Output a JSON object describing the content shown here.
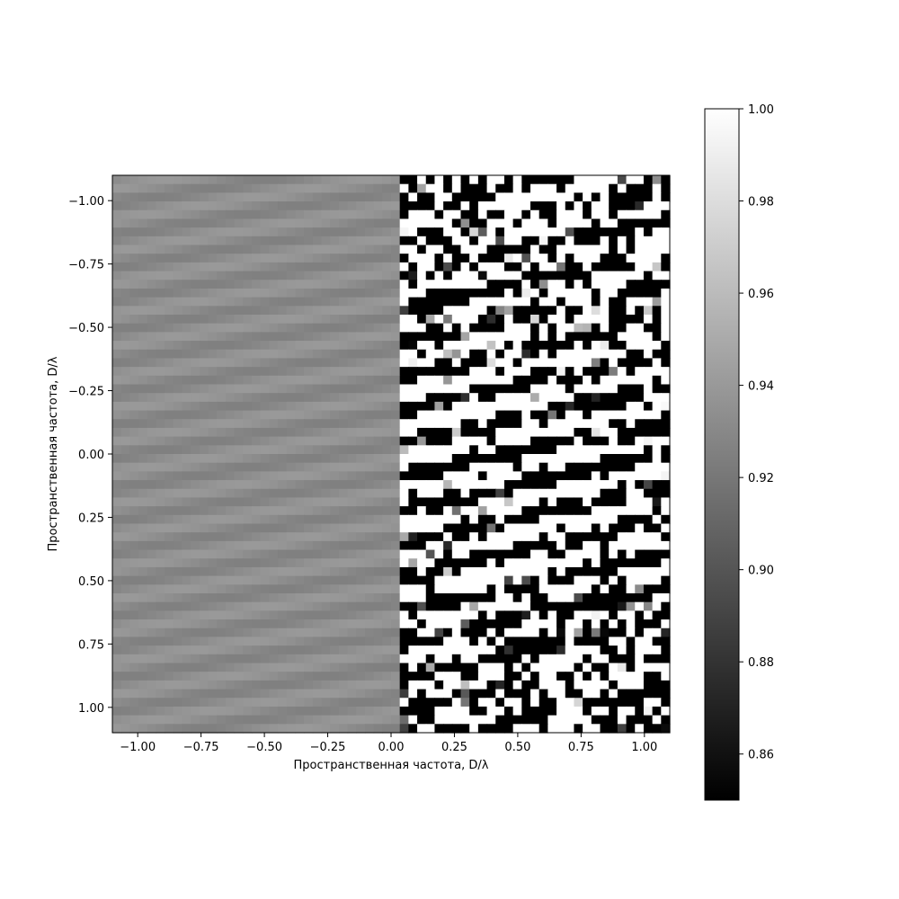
{
  "chart_data": {
    "type": "heatmap",
    "title": "",
    "xlabel": "Пространственная частота, D/λ",
    "ylabel": "Пространственная частота, D/λ",
    "xlim": [
      -1.1,
      1.1
    ],
    "ylim": [
      1.1,
      -1.1
    ],
    "grid": false,
    "colormap": "gray",
    "x_ticks": [
      -1.0,
      -0.75,
      -0.5,
      -0.25,
      0.0,
      0.25,
      0.5,
      0.75,
      1.0
    ],
    "x_tick_labels": [
      "−1.00",
      "−0.75",
      "−0.50",
      "−0.25",
      "0.00",
      "0.25",
      "0.50",
      "0.75",
      "1.00"
    ],
    "y_ticks": [
      -1.0,
      -0.75,
      -0.5,
      -0.25,
      0.0,
      0.25,
      0.5,
      0.75,
      1.0
    ],
    "y_tick_labels": [
      "−1.00",
      "−0.75",
      "−0.50",
      "−0.25",
      "0.00",
      "0.25",
      "0.50",
      "0.75",
      "1.00"
    ],
    "colorbar": {
      "range": [
        0.85,
        1.0
      ],
      "ticks": [
        0.86,
        0.88,
        0.9,
        0.92,
        0.94,
        0.96,
        0.98,
        1.0
      ],
      "tick_labels": [
        "0.86",
        "0.88",
        "0.90",
        "0.92",
        "0.94",
        "0.96",
        "0.98",
        "1.00"
      ]
    },
    "grid_size": [
      64,
      64
    ],
    "regions": [
      {
        "x_range": [
          -1.1,
          0.02
        ],
        "value_range": [
          0.925,
          0.94
        ],
        "pattern": "diagonal stripes"
      },
      {
        "x_range": [
          0.02,
          1.1
        ],
        "value_range": [
          0.85,
          1.0
        ],
        "pattern": "binary stripes, noisy"
      }
    ]
  }
}
